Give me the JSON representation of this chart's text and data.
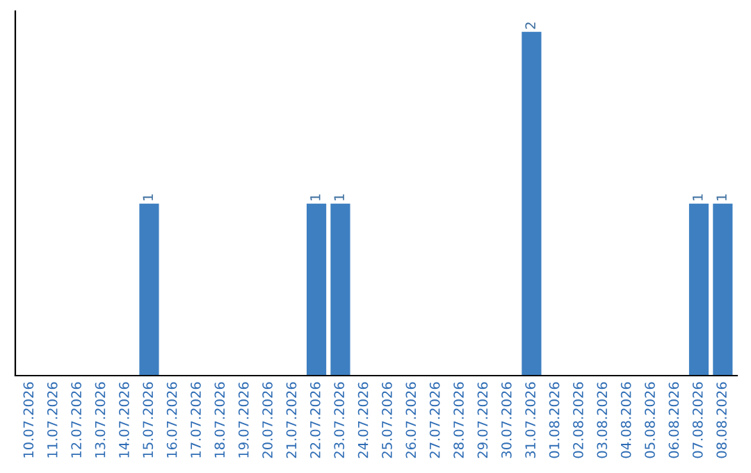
{
  "chart_data": {
    "type": "bar",
    "categories": [
      "10.07.2026",
      "11.07.2026",
      "12.07.2026",
      "13.07.2026",
      "14.07.2026",
      "15.07.2026",
      "16.07.2026",
      "17.07.2026",
      "18.07.2026",
      "19.07.2026",
      "20.07.2026",
      "21.07.2026",
      "22.07.2026",
      "23.07.2026",
      "24.07.2026",
      "25.07.2026",
      "26.07.2026",
      "27.07.2026",
      "28.07.2026",
      "29.07.2026",
      "30.07.2026",
      "31.07.2026",
      "01.08.2026",
      "02.08.2026",
      "03.08.2026",
      "04.08.2026",
      "05.08.2026",
      "06.08.2026",
      "07.08.2026",
      "08.08.2026"
    ],
    "values": [
      0,
      0,
      0,
      0,
      0,
      1,
      0,
      0,
      0,
      0,
      0,
      0,
      1,
      1,
      0,
      0,
      0,
      0,
      0,
      0,
      0,
      2,
      0,
      0,
      0,
      0,
      0,
      0,
      1,
      1
    ],
    "value_labels": [
      null,
      null,
      null,
      null,
      null,
      "1",
      null,
      null,
      null,
      null,
      null,
      null,
      "1",
      "1",
      null,
      null,
      null,
      null,
      null,
      null,
      null,
      "2",
      null,
      null,
      null,
      null,
      null,
      null,
      "1",
      "1"
    ],
    "color": "#3d7fc1",
    "tick_labels": "x",
    "grid": false,
    "legend": false
  }
}
